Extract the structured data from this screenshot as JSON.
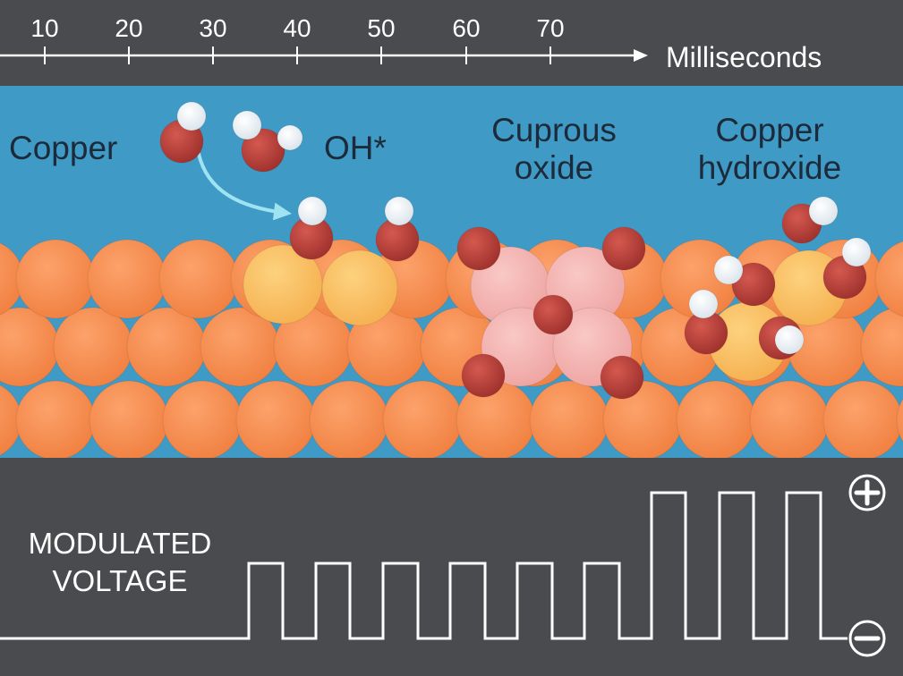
{
  "timeline": {
    "ticks": [
      "10",
      "20",
      "30",
      "40",
      "50",
      "60",
      "70"
    ],
    "unit_label": "Milliseconds"
  },
  "labels": {
    "copper": "Copper",
    "oh": "OH*",
    "cuprous_line1": "Cuprous",
    "cuprous_line2": "oxide",
    "hydroxide_line1": "Copper",
    "hydroxide_line2": "hydroxide"
  },
  "voltage": {
    "label_line1": "MODULATED",
    "label_line2": "VOLTAGE",
    "plus_symbol": "+",
    "minus_symbol": "−"
  },
  "colors": {
    "top_band": "#4a4b4e",
    "solution_blue": "#3f9bc6",
    "copper_orange": "#f8894a",
    "oh_yellow": "#f9bd62",
    "oxide_pink": "#f2b0ae",
    "oxygen_red": "#b8403a",
    "hydrogen_white": "#f3f6f8",
    "arrow_cyan": "#9fe3f2",
    "label_text": "#1d2a3a"
  }
}
